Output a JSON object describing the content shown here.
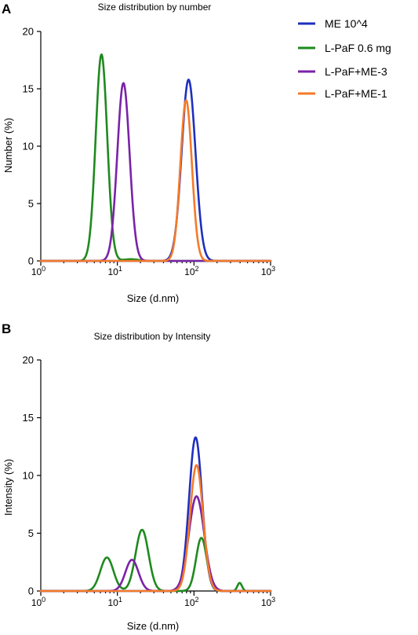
{
  "panels": [
    {
      "letter": "A"
    },
    {
      "letter": "B"
    }
  ],
  "legend": {
    "entries": [
      {
        "label": "ME 10^4",
        "color": "#1f2fbf"
      },
      {
        "label": "L-PaF 0.6 mg",
        "color": "#1e8a1e"
      },
      {
        "label": "L-PaF+ME-3",
        "color": "#7a22a8"
      },
      {
        "label": "L-PaF+ME-1",
        "color": "#f47a2a"
      }
    ]
  },
  "chart_data": [
    {
      "type": "line",
      "title": "Size distribution by number",
      "xlabel": "Size (d.nm)",
      "ylabel": "Number (%)",
      "xscale": "log",
      "xlim": [
        1,
        1000
      ],
      "ylim": [
        0,
        20
      ],
      "yticks": [
        0,
        5,
        10,
        15,
        20
      ],
      "xticks": [
        {
          "base": "10",
          "exp": "0"
        },
        {
          "base": "10",
          "exp": "1"
        },
        {
          "base": "10",
          "exp": "2"
        },
        {
          "base": "10",
          "exp": "3"
        }
      ],
      "grid": false,
      "legend_position": "right",
      "series": [
        {
          "name": "ME 10^4",
          "color": "#1f2fbf",
          "peaks": [
            {
              "center": 85,
              "peak": 15.8,
              "width": 0.09
            }
          ]
        },
        {
          "name": "L-PaF 0.6 mg",
          "color": "#1e8a1e",
          "peaks": [
            {
              "center": 6.2,
              "peak": 18.0,
              "width": 0.075
            },
            {
              "center": 15,
              "peak": 0.15,
              "width": 0.1
            }
          ]
        },
        {
          "name": "L-PaF+ME-3",
          "color": "#7a22a8",
          "peaks": [
            {
              "center": 12,
              "peak": 15.5,
              "width": 0.08
            }
          ]
        },
        {
          "name": "L-PaF+ME-1",
          "color": "#f47a2a",
          "peaks": [
            {
              "center": 79,
              "peak": 14.0,
              "width": 0.075
            }
          ]
        }
      ]
    },
    {
      "type": "line",
      "title": "Size distribution by Intensity",
      "xlabel": "Size (d.nm)",
      "ylabel": "Intensity (%)",
      "xscale": "log",
      "xlim": [
        1,
        1000
      ],
      "ylim": [
        0,
        20
      ],
      "yticks": [
        0,
        5,
        10,
        15,
        20
      ],
      "xticks": [
        {
          "base": "10",
          "exp": "0"
        },
        {
          "base": "10",
          "exp": "1"
        },
        {
          "base": "10",
          "exp": "2"
        },
        {
          "base": "10",
          "exp": "3"
        }
      ],
      "grid": false,
      "series": [
        {
          "name": "ME 10^4",
          "color": "#1f2fbf",
          "peaks": [
            {
              "center": 105,
              "peak": 13.3,
              "width": 0.085
            }
          ]
        },
        {
          "name": "L-PaF 0.6 mg",
          "color": "#1e8a1e",
          "peaks": [
            {
              "center": 7.3,
              "peak": 2.9,
              "width": 0.085
            },
            {
              "center": 21,
              "peak": 5.3,
              "width": 0.085
            },
            {
              "center": 125,
              "peak": 4.6,
              "width": 0.07
            },
            {
              "center": 395,
              "peak": 0.7,
              "width": 0.03
            }
          ]
        },
        {
          "name": "L-PaF+ME-3",
          "color": "#7a22a8",
          "peaks": [
            {
              "center": 15.5,
              "peak": 2.7,
              "width": 0.085
            },
            {
              "center": 108,
              "peak": 8.2,
              "width": 0.1
            }
          ]
        },
        {
          "name": "L-PaF+ME-1",
          "color": "#f47a2a",
          "peaks": [
            {
              "center": 108,
              "peak": 10.9,
              "width": 0.085
            }
          ]
        }
      ]
    }
  ]
}
